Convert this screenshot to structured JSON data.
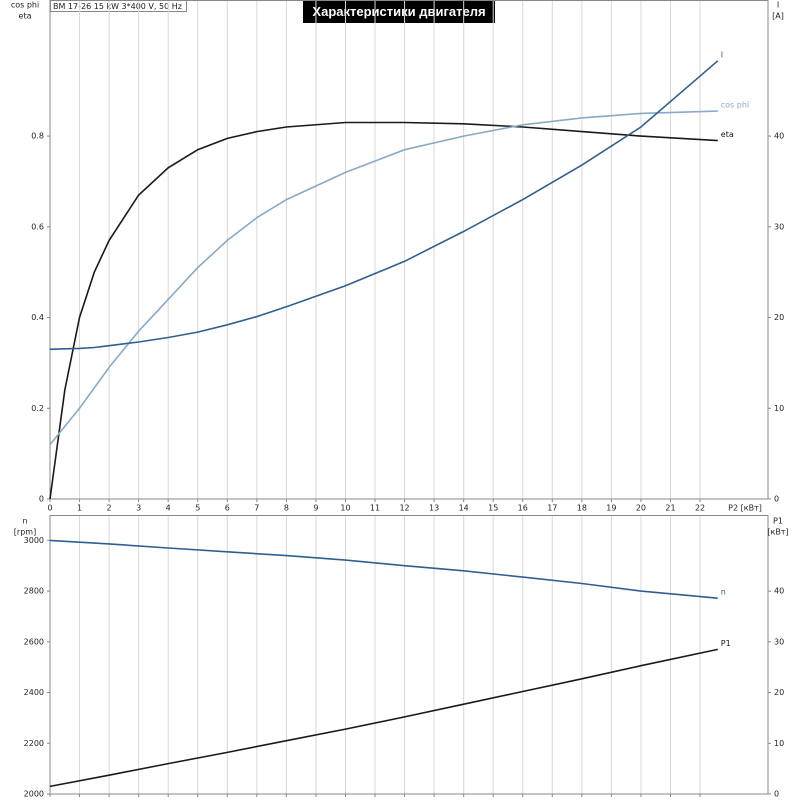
{
  "chart_data": [
    {
      "type": "line",
      "title": "Характеристики двигателя",
      "info": "BM 17-26   15 kW   3*400 V, 50 Hz",
      "ylabel": [
        "cos phi",
        "eta"
      ],
      "y2label": [
        "I",
        "[A]"
      ],
      "xlabel": "P2 [кВт]",
      "x": [
        0,
        0.5,
        1,
        1.5,
        2,
        3,
        4,
        5,
        6,
        7,
        8,
        10,
        12,
        14,
        16,
        18,
        20,
        22.6
      ],
      "series": [
        {
          "name": "eta",
          "color": "#1a1a1a",
          "values": [
            0,
            0.24,
            0.4,
            0.5,
            0.57,
            0.67,
            0.73,
            0.77,
            0.795,
            0.81,
            0.82,
            0.83,
            0.83,
            0.827,
            0.82,
            0.81,
            0.8,
            0.79
          ]
        },
        {
          "name": "cos phi",
          "color": "#88aac8",
          "values": [
            0.12,
            0.16,
            0.2,
            0.245,
            0.29,
            0.37,
            0.44,
            0.51,
            0.57,
            0.62,
            0.66,
            0.72,
            0.77,
            0.8,
            0.825,
            0.84,
            0.85,
            0.855
          ]
        },
        {
          "name": "I",
          "color": "#2f5f8f",
          "axis": "y2",
          "values": [
            16.5,
            16.55,
            16.6,
            16.7,
            16.9,
            17.3,
            17.8,
            18.4,
            19.2,
            20.1,
            21.2,
            23.5,
            26.2,
            29.5,
            33,
            36.8,
            41,
            48.3
          ]
        }
      ],
      "xlim": [
        0,
        24.3
      ],
      "xticks": [
        0,
        1,
        2,
        3,
        4,
        5,
        6,
        7,
        8,
        9,
        10,
        11,
        12,
        13,
        14,
        15,
        16,
        17,
        18,
        19,
        20,
        21,
        22
      ],
      "ylim": [
        0,
        1.1
      ],
      "yticks": [
        0.0,
        0.2,
        0.4,
        0.6,
        0.8
      ],
      "y2lim": [
        0,
        55
      ],
      "y2ticks": [
        0,
        10,
        20,
        30,
        40
      ],
      "grid": true,
      "xtick_labels": true
    },
    {
      "type": "line",
      "ylabel": [
        "n",
        "[rpm]"
      ],
      "y2label": [
        "P1",
        "[кВт]"
      ],
      "x": [
        0,
        2,
        4,
        6,
        8,
        10,
        12,
        14,
        16,
        18,
        20,
        22.6
      ],
      "series": [
        {
          "name": "n",
          "color": "#2f5f8f",
          "values": [
            3000,
            2986,
            2970,
            2955,
            2940,
            2922,
            2900,
            2880,
            2855,
            2830,
            2800,
            2772
          ]
        },
        {
          "name": "P1",
          "color": "#1a1a1a",
          "axis": "y2",
          "values": [
            1.5,
            3.7,
            6,
            8.2,
            10.5,
            12.8,
            15.2,
            17.7,
            20.2,
            22.7,
            25.3,
            28.5
          ]
        }
      ],
      "xlim": [
        0,
        24.3
      ],
      "xticks": [
        0,
        1,
        2,
        3,
        4,
        5,
        6,
        7,
        8,
        9,
        10,
        11,
        12,
        13,
        14,
        15,
        16,
        17,
        18,
        19,
        20,
        21,
        22
      ],
      "ylim": [
        2000,
        3100
      ],
      "yticks": [
        2000,
        2200,
        2400,
        2600,
        2800,
        3000
      ],
      "y2lim": [
        0,
        55
      ],
      "y2ticks": [
        0,
        10,
        20,
        30,
        40
      ],
      "grid": true,
      "xtick_labels": false
    }
  ]
}
